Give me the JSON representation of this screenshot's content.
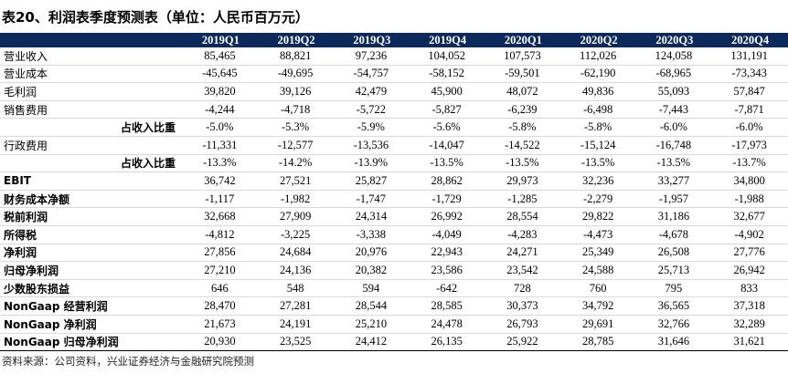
{
  "header": {
    "title": "表20、利润表季度预测表（单位：人民币百万元）"
  },
  "table": {
    "columns": [
      "2019Q1",
      "2019Q2",
      "2019Q3",
      "2019Q4",
      "2020Q1",
      "2020Q2",
      "2020Q3",
      "2020Q4"
    ],
    "rows": [
      [
        "营业收入",
        "85,465",
        "88,821",
        "97,236",
        "104,052",
        "107,573",
        "112,026",
        "124,058",
        "131,191"
      ],
      [
        "营业成本",
        "-45,645",
        "-49,695",
        "-54,757",
        "-58,152",
        "-59,501",
        "-62,190",
        "-68,965",
        "-73,343"
      ],
      [
        "毛利润",
        "39,820",
        "39,126",
        "42,479",
        "45,900",
        "48,072",
        "49,836",
        "55,093",
        "57,847"
      ],
      [
        "销售费用",
        "-4,244",
        "-4,718",
        "-5,722",
        "-5,827",
        "-6,239",
        "-6,498",
        "-7,443",
        "-7,871"
      ],
      [
        "占收入比重",
        "-5.0%",
        "-5.3%",
        "-5.9%",
        "-5.6%",
        "-5.8%",
        "-5.8%",
        "-6.0%",
        "-6.0%"
      ],
      [
        "行政费用",
        "-11,331",
        "-12,577",
        "-13,536",
        "-14,047",
        "-14,522",
        "-15,124",
        "-16,748",
        "-17,973"
      ],
      [
        "占收入比重",
        "-13.3%",
        "-14.2%",
        "-13.9%",
        "-13.5%",
        "-13.5%",
        "-13.5%",
        "-13.5%",
        "-13.7%"
      ],
      [
        "EBIT",
        "36,742",
        "27,521",
        "25,827",
        "28,862",
        "29,973",
        "32,236",
        "33,277",
        "34,800"
      ],
      [
        "财务成本净额",
        "-1,117",
        "-1,982",
        "-1,747",
        "-1,729",
        "-1,285",
        "-2,279",
        "-1,957",
        "-1,988"
      ],
      [
        "税前利润",
        "32,668",
        "27,909",
        "24,314",
        "26,992",
        "28,554",
        "29,822",
        "31,186",
        "32,677"
      ],
      [
        "所得税",
        "-4,812",
        "-3,225",
        "-3,338",
        "-4,049",
        "-4,283",
        "-4,473",
        "-4,678",
        "-4,902"
      ],
      [
        "净利润",
        "27,856",
        "24,684",
        "20,976",
        "22,943",
        "24,271",
        "25,349",
        "26,508",
        "27,776"
      ],
      [
        "归母净利润",
        "27,210",
        "24,136",
        "20,382",
        "23,586",
        "23,542",
        "24,588",
        "25,713",
        "26,942"
      ],
      [
        "少数股东损益",
        "646",
        "548",
        "594",
        "-642",
        "728",
        "760",
        "795",
        "833"
      ],
      [
        "NonGaap 经营利润",
        "28,470",
        "27,281",
        "28,544",
        "28,585",
        "30,373",
        "34,792",
        "36,565",
        "37,318"
      ],
      [
        "NonGaap 净利润",
        "21,673",
        "24,191",
        "25,210",
        "24,478",
        "26,793",
        "29,691",
        "32,766",
        "32,289"
      ],
      [
        "NonGaap 归母净利润",
        "20,930",
        "23,525",
        "24,412",
        "26,135",
        "25,922",
        "28,785",
        "31,646",
        "31,621"
      ]
    ]
  },
  "source": "资料来源：公司资料，兴业证券经济与金融研究院预测"
}
